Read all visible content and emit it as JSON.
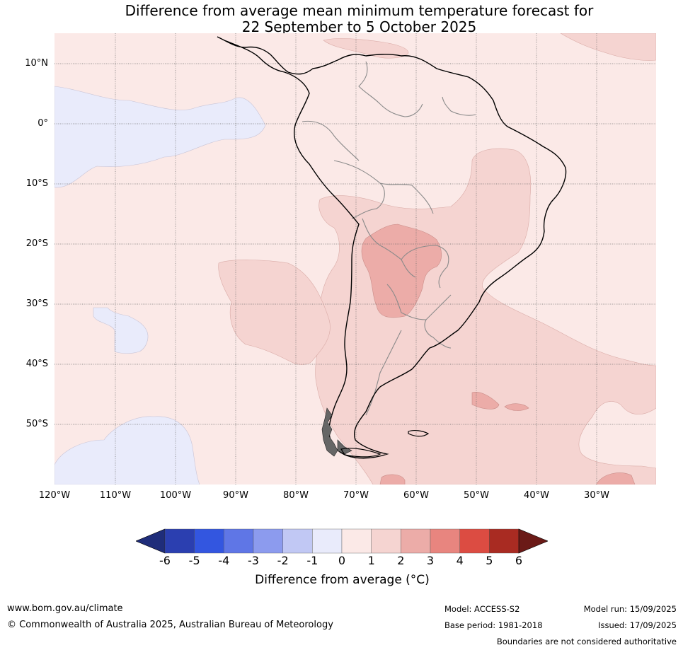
{
  "title_line1": "Difference from average mean minimum temperature forecast for",
  "title_line2": "22 September to 5 October 2025",
  "lat_labels": [
    "10°N",
    "0°",
    "10°S",
    "20°S",
    "30°S",
    "40°S",
    "50°S"
  ],
  "lon_labels": [
    "120°W",
    "110°W",
    "100°W",
    "90°W",
    "80°W",
    "70°W",
    "60°W",
    "50°W",
    "40°W",
    "30°W"
  ],
  "colorbar": {
    "label": "Difference from average (°C)",
    "ticks": [
      "-6",
      "-5",
      "-4",
      "-3",
      "-2",
      "-1",
      "0",
      "1",
      "2",
      "3",
      "4",
      "5",
      "6"
    ],
    "colors": [
      "#1f2d7a",
      "#2b3fb0",
      "#3356e0",
      "#5f76e6",
      "#8c9bee",
      "#c1c8f4",
      "#e9ebfb",
      "#fbe9e7",
      "#f5d4d1",
      "#ecaca8",
      "#e8857f",
      "#dc4c42",
      "#a92b22",
      "#6b1a17"
    ]
  },
  "footer": {
    "website": "www.bom.gov.au/climate",
    "copyright": "© Commonwealth of Australia 2025, Australian Bureau of Meteorology",
    "model": "Model: ACCESS-S2",
    "base_period": "Base period: 1981-2018",
    "model_run": "Model run: 15/09/2025",
    "issued": "Issued: 17/09/2025",
    "disclaimer": "Boundaries are not considered authoritative"
  }
}
